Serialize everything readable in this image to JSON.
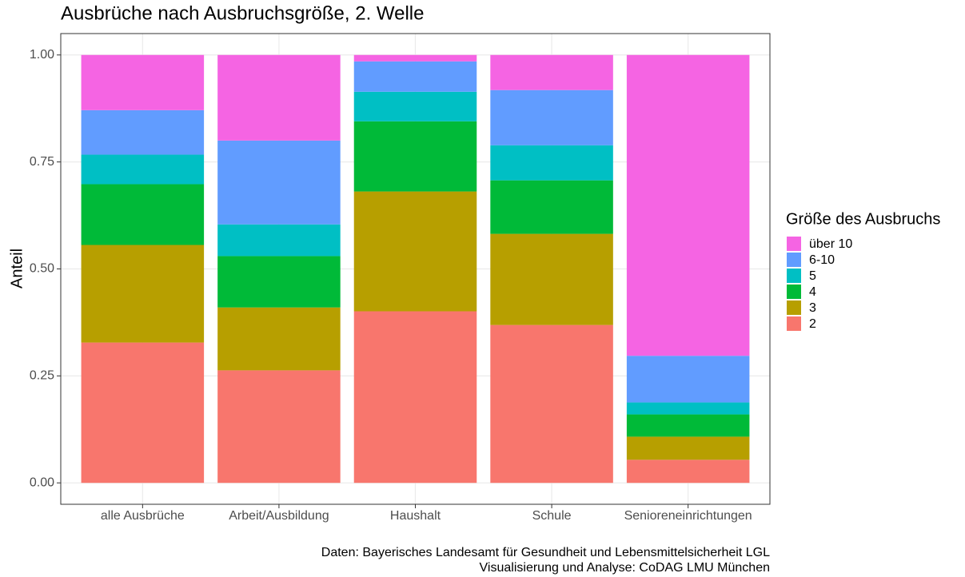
{
  "chart_data": {
    "type": "stacked_bar",
    "title": "Ausbrüche nach Ausbruchsgröße, 2. Welle",
    "y_label": "Anteil",
    "legend_title": "Größe des Ausbruchs",
    "caption": [
      "Daten: Bayerisches Landesamt für Gesundheit und Lebensmittelsicherheit LGL",
      "Visualisierung und Analyse: CoDAG LMU München"
    ],
    "categories": [
      "alle Ausbrüche",
      "Arbeit/Ausbildung",
      "Haushalt",
      "Schule",
      "Senioreneinrichtungen"
    ],
    "series": [
      {
        "name": "2",
        "color": "#F8766D",
        "values": [
          0.328,
          0.263,
          0.401,
          0.369,
          0.054
        ]
      },
      {
        "name": "3",
        "color": "#B79F00",
        "values": [
          0.228,
          0.147,
          0.28,
          0.213,
          0.054
        ]
      },
      {
        "name": "4",
        "color": "#00BA38",
        "values": [
          0.142,
          0.12,
          0.164,
          0.125,
          0.052
        ]
      },
      {
        "name": "5",
        "color": "#00BFC4",
        "values": [
          0.069,
          0.074,
          0.069,
          0.082,
          0.028
        ]
      },
      {
        "name": "6-10",
        "color": "#619CFF",
        "values": [
          0.104,
          0.196,
          0.071,
          0.129,
          0.109
        ]
      },
      {
        "name": "über 10",
        "color": "#F564E3",
        "values": [
          0.129,
          0.2,
          0.015,
          0.082,
          0.703
        ]
      }
    ],
    "ylim": [
      -0.05,
      1.05
    ],
    "yticks": [
      {
        "value": 0,
        "label": "0.00"
      },
      {
        "value": 0.25,
        "label": "0.25"
      },
      {
        "value": 0.5,
        "label": "0.50"
      },
      {
        "value": 0.75,
        "label": "0.75"
      },
      {
        "value": 1,
        "label": "1.00"
      }
    ],
    "grid": true,
    "legend_position": "right"
  }
}
